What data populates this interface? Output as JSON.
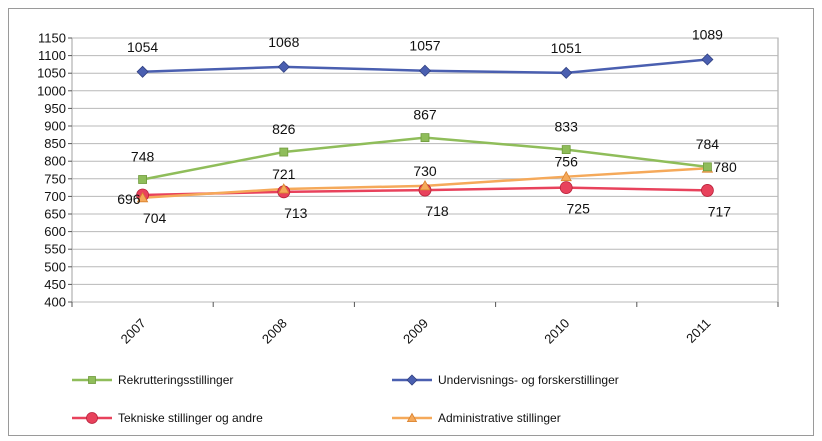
{
  "chart_data": {
    "type": "line",
    "title": "",
    "xlabel": "",
    "ylabel": "",
    "categories": [
      "2007",
      "2008",
      "2009",
      "2010",
      "2011"
    ],
    "ylim": [
      400,
      1150
    ],
    "ytick_step": 50,
    "grid": true,
    "legend_position": "bottom",
    "series": [
      {
        "name": "Rekrutteringsstillinger",
        "values": [
          748,
          826,
          867,
          833,
          784
        ],
        "color": "#8fbd5a",
        "marker": "square",
        "labels": [
          "748",
          "826",
          "867",
          "833",
          "784"
        ]
      },
      {
        "name": "Undervisnings- og forskerstillinger",
        "values": [
          1054,
          1068,
          1057,
          1051,
          1089
        ],
        "color": "#4a5fb0",
        "marker": "diamond",
        "labels": [
          "1054",
          "1068",
          "1057",
          "1051",
          "1089"
        ]
      },
      {
        "name": "Tekniske stillinger og andre",
        "values": [
          704,
          713,
          718,
          725,
          717
        ],
        "color": "#e8425c",
        "marker": "circle",
        "labels": [
          "704",
          "713",
          "718",
          "725",
          "717"
        ]
      },
      {
        "name": "Administrative stillinger",
        "values": [
          696,
          721,
          730,
          756,
          780
        ],
        "color": "#f5a95a",
        "marker": "triangle",
        "labels": [
          "696",
          "721",
          "730",
          "756",
          "780"
        ]
      }
    ]
  }
}
